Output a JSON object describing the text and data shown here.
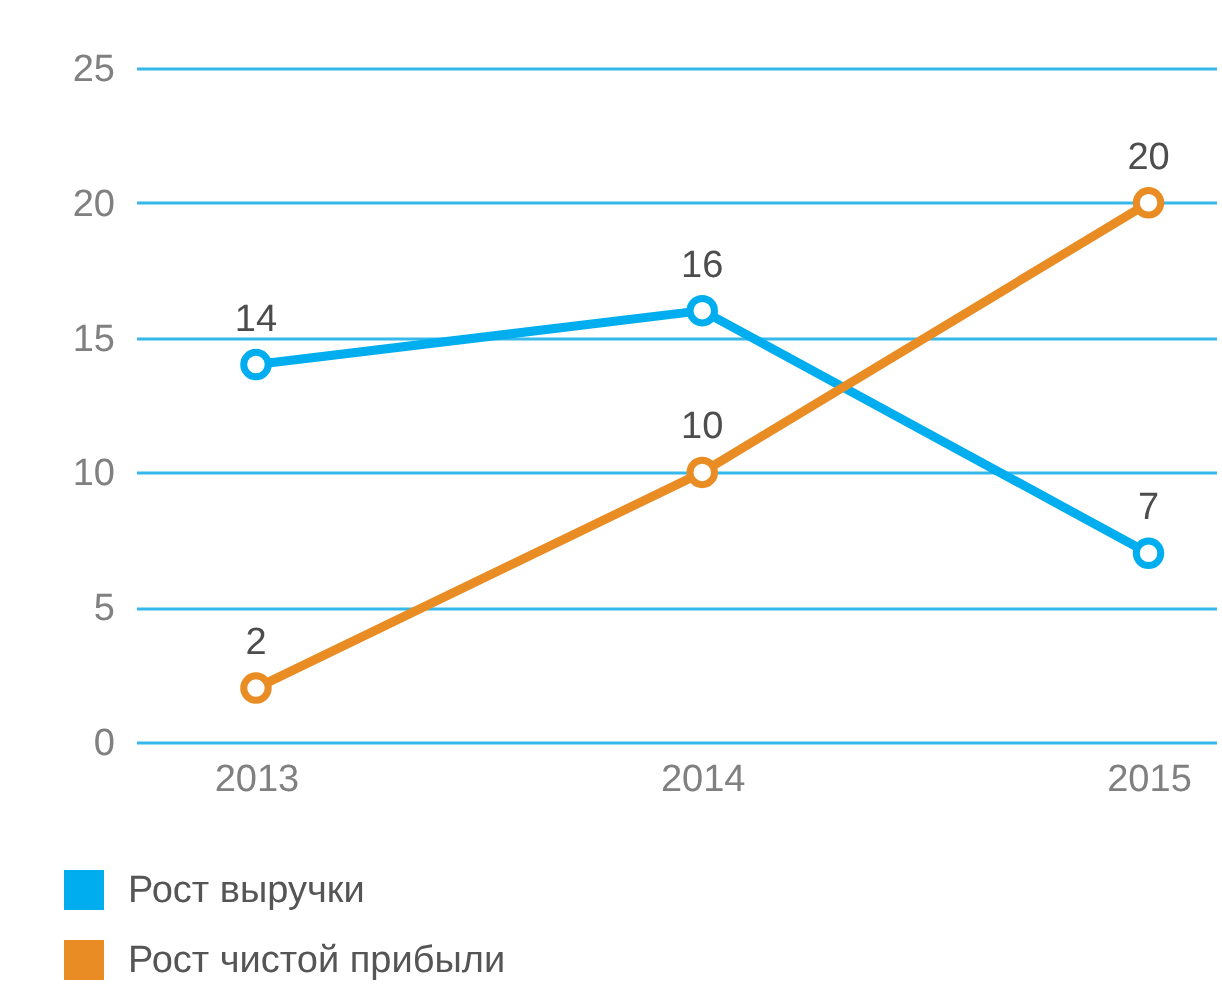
{
  "chart_data": {
    "type": "line",
    "categories": [
      "2013",
      "2014",
      "2015"
    ],
    "series": [
      {
        "name": "Рост выручки",
        "color": "#00aeef",
        "values": [
          14,
          16,
          7
        ]
      },
      {
        "name": "Рост чистой прибыли",
        "color": "#e98c23",
        "values": [
          2,
          10,
          20
        ]
      }
    ],
    "ylim": [
      0,
      25
    ],
    "yticks": [
      0,
      5,
      10,
      15,
      20,
      25
    ],
    "grid": "y",
    "data_labels": true,
    "legend": "bottom left",
    "marker": "circle",
    "line_style": "solid"
  }
}
